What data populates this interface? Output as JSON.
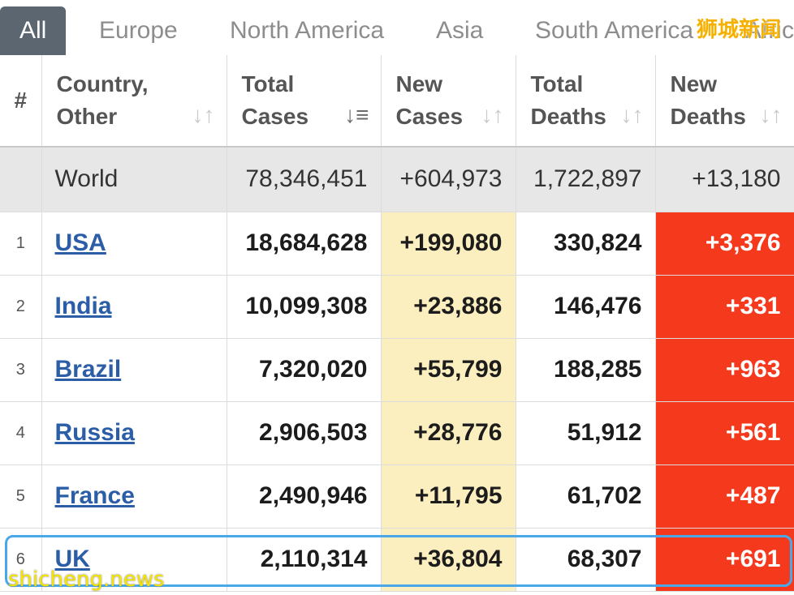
{
  "tabs": [
    "All",
    "Europe",
    "North America",
    "Asia",
    "South America",
    "Afric"
  ],
  "watermark_top": "狮城新闻",
  "watermark_bottom": "shicheng.news",
  "columns": {
    "rank": "#",
    "country": [
      "Country,",
      "Other"
    ],
    "total_cases": [
      "Total",
      "Cases"
    ],
    "new_cases": [
      "New",
      "Cases"
    ],
    "total_deaths": [
      "Total",
      "Deaths"
    ],
    "new_deaths": [
      "New",
      "Deaths"
    ]
  },
  "world": {
    "country": "World",
    "total_cases": "78,346,451",
    "new_cases": "+604,973",
    "total_deaths": "1,722,897",
    "new_deaths": "+13,180"
  },
  "rows": [
    {
      "rank": "1",
      "country": "USA",
      "total_cases": "18,684,628",
      "new_cases": "+199,080",
      "total_deaths": "330,824",
      "new_deaths": "+3,376"
    },
    {
      "rank": "2",
      "country": "India",
      "total_cases": "10,099,308",
      "new_cases": "+23,886",
      "total_deaths": "146,476",
      "new_deaths": "+331"
    },
    {
      "rank": "3",
      "country": "Brazil",
      "total_cases": "7,320,020",
      "new_cases": "+55,799",
      "total_deaths": "188,285",
      "new_deaths": "+963"
    },
    {
      "rank": "4",
      "country": "Russia",
      "total_cases": "2,906,503",
      "new_cases": "+28,776",
      "total_deaths": "51,912",
      "new_deaths": "+561"
    },
    {
      "rank": "5",
      "country": "France",
      "total_cases": "2,490,946",
      "new_cases": "+11,795",
      "total_deaths": "61,702",
      "new_deaths": "+487"
    },
    {
      "rank": "6",
      "country": "UK",
      "total_cases": "2,110,314",
      "new_cases": "+36,804",
      "total_deaths": "68,307",
      "new_deaths": "+691"
    }
  ],
  "colors": {
    "tab_active": "#5b6670",
    "new_cases_bg": "#fbeebf",
    "new_deaths_bg": "#f5391c",
    "link": "#2b5ea7",
    "highlight": "#4aa8e8"
  }
}
